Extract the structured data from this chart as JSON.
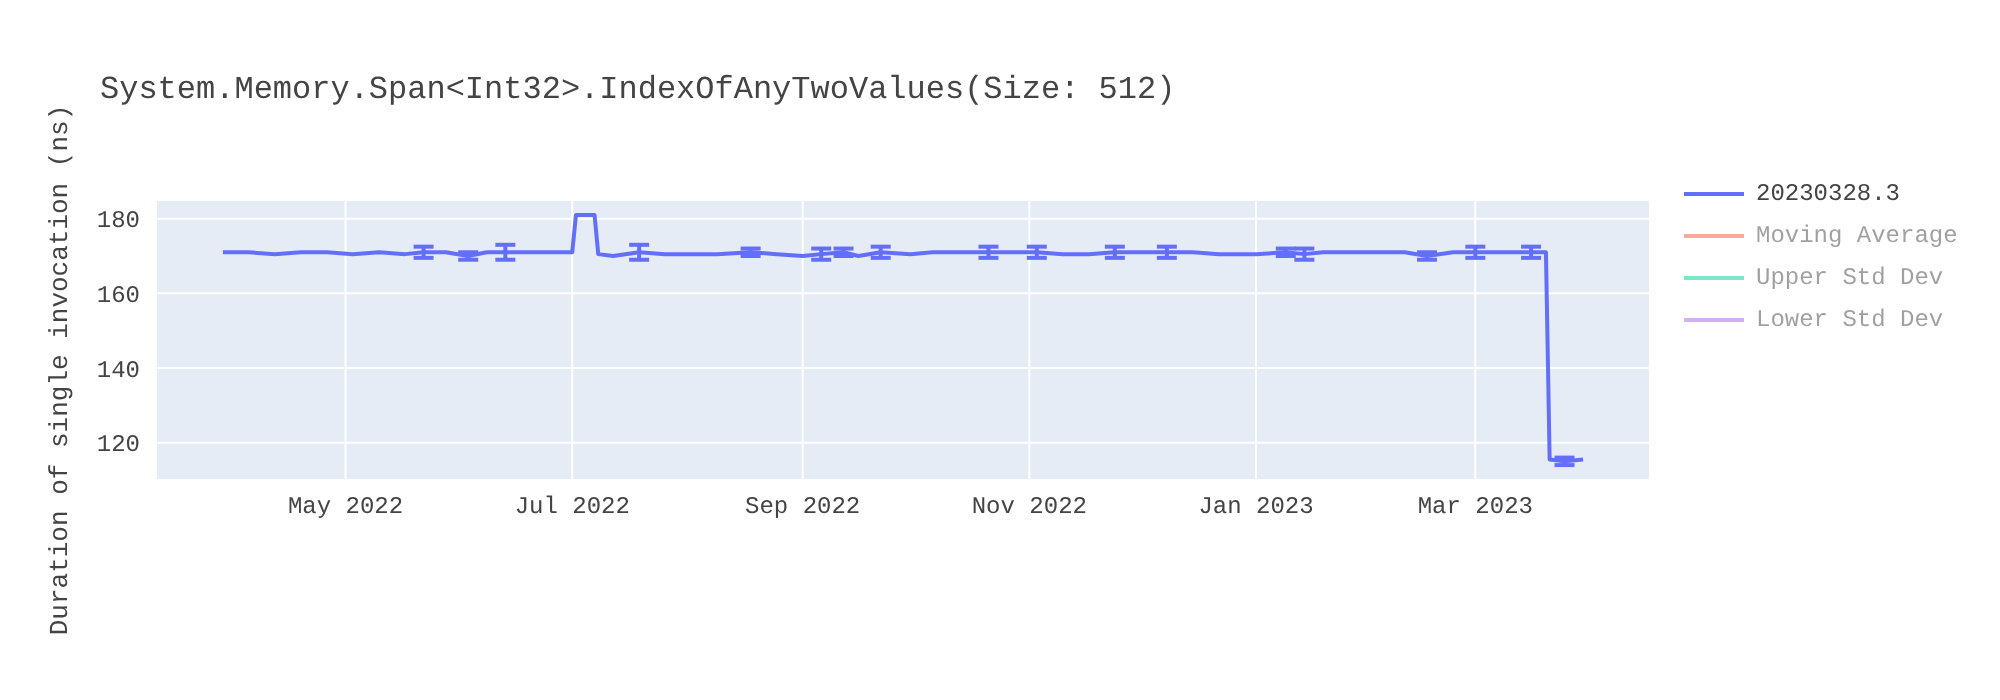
{
  "chart_data": {
    "type": "line",
    "title": "System.Memory.Span<Int32>.IndexOfAnyTwoValues(Size: 512)",
    "ylabel": "Duration of single invocation (ns)",
    "x": [
      "2022-03-29",
      "2022-04-05",
      "2022-04-12",
      "2022-04-19",
      "2022-04-26",
      "2022-05-03",
      "2022-05-10",
      "2022-05-17",
      "2022-05-22",
      "2022-05-28",
      "2022-06-03",
      "2022-06-08",
      "2022-06-13",
      "2022-06-20",
      "2022-06-27",
      "2022-07-01",
      "2022-07-02",
      "2022-07-05",
      "2022-07-07",
      "2022-07-08",
      "2022-07-12",
      "2022-07-19",
      "2022-07-26",
      "2022-08-02",
      "2022-08-09",
      "2022-08-18",
      "2022-08-25",
      "2022-09-01",
      "2022-09-06",
      "2022-09-12",
      "2022-09-16",
      "2022-09-22",
      "2022-09-30",
      "2022-10-06",
      "2022-10-14",
      "2022-10-21",
      "2022-10-26",
      "2022-11-03",
      "2022-11-10",
      "2022-11-17",
      "2022-11-24",
      "2022-12-01",
      "2022-12-08",
      "2022-12-15",
      "2022-12-22",
      "2023-01-01",
      "2023-01-09",
      "2023-01-14",
      "2023-01-19",
      "2023-01-26",
      "2023-02-03",
      "2023-02-10",
      "2023-02-16",
      "2023-02-23",
      "2023-03-01",
      "2023-03-05",
      "2023-03-12",
      "2023-03-16",
      "2023-03-20",
      "2023-03-21",
      "2023-03-25",
      "2023-03-30"
    ],
    "series": [
      {
        "name": "20230328.3",
        "color": "#636efa",
        "values": [
          171,
          171,
          170.5,
          171,
          171,
          170.5,
          171,
          170.5,
          171,
          171,
          170,
          171,
          171,
          171,
          171,
          171,
          181,
          181,
          181,
          170.5,
          170,
          171,
          170.5,
          170.5,
          170.5,
          171,
          170.5,
          170,
          170.5,
          171,
          170,
          171,
          170.5,
          171,
          171,
          171,
          171,
          171,
          170.5,
          170.5,
          171,
          171,
          171,
          171,
          170.5,
          170.5,
          171,
          170.5,
          171,
          171,
          171,
          171,
          170,
          171,
          171,
          171,
          171,
          171,
          171,
          115.5,
          115,
          115.5
        ],
        "errors": [
          null,
          null,
          null,
          null,
          null,
          null,
          null,
          null,
          1.5,
          null,
          1,
          null,
          2,
          null,
          null,
          null,
          null,
          null,
          null,
          null,
          null,
          2,
          null,
          null,
          null,
          1,
          null,
          null,
          1.5,
          1,
          null,
          1.5,
          null,
          null,
          null,
          1.5,
          null,
          1.5,
          null,
          null,
          1.5,
          null,
          1.5,
          null,
          null,
          null,
          1,
          1.5,
          null,
          null,
          null,
          null,
          1,
          null,
          1.5,
          null,
          null,
          1.5,
          null,
          null,
          1,
          null
        ]
      },
      {
        "name": "Moving Average",
        "color": "#ef553b",
        "values": [
          null,
          null,
          null,
          null,
          null,
          null,
          null,
          null,
          null,
          null,
          null,
          null,
          null,
          null,
          null,
          null,
          null,
          null,
          null,
          null,
          null,
          null,
          null,
          null,
          null,
          null,
          null,
          null,
          null,
          null,
          null,
          null,
          null,
          null,
          null,
          null,
          null,
          null,
          null,
          null,
          null,
          null,
          null,
          null,
          null,
          null,
          null,
          null,
          null,
          null,
          null,
          null,
          null,
          null,
          null,
          null,
          null,
          null,
          null,
          null,
          null,
          null
        ]
      },
      {
        "name": "Upper Std Dev",
        "color": "#00cc96",
        "values": [
          null,
          null,
          null,
          null,
          null,
          null,
          null,
          null,
          null,
          null,
          null,
          null,
          null,
          null,
          null,
          null,
          null,
          null,
          null,
          null,
          null,
          null,
          null,
          null,
          null,
          null,
          null,
          null,
          null,
          null,
          null,
          null,
          null,
          null,
          null,
          null,
          null,
          null,
          null,
          null,
          null,
          null,
          null,
          null,
          null,
          null,
          null,
          null,
          null,
          null,
          null,
          null,
          null,
          null,
          null,
          null,
          null,
          null,
          null,
          null,
          null,
          null
        ]
      },
      {
        "name": "Lower Std Dev",
        "color": "#ab63fa",
        "values": [
          null,
          null,
          null,
          null,
          null,
          null,
          null,
          null,
          null,
          null,
          null,
          null,
          null,
          null,
          null,
          null,
          null,
          null,
          null,
          null,
          null,
          null,
          null,
          null,
          null,
          null,
          null,
          null,
          null,
          null,
          null,
          null,
          null,
          null,
          null,
          null,
          null,
          null,
          null,
          null,
          null,
          null,
          null,
          null,
          null,
          null,
          null,
          null,
          null,
          null,
          null,
          null,
          null,
          null,
          null,
          null,
          null,
          null,
          null,
          null,
          null,
          null
        ]
      }
    ],
    "xlim": [
      "2022-03-11",
      "2023-04-17"
    ],
    "xticks": [
      {
        "value": "2022-05-01",
        "label": "May 2022"
      },
      {
        "value": "2022-07-01",
        "label": "Jul 2022"
      },
      {
        "value": "2022-09-01",
        "label": "Sep 2022"
      },
      {
        "value": "2022-11-01",
        "label": "Nov 2022"
      },
      {
        "value": "2023-01-01",
        "label": "Jan 2023"
      },
      {
        "value": "2023-03-01",
        "label": "Mar 2023"
      }
    ],
    "ylim": [
      110,
      185
    ],
    "yticks": [
      120,
      140,
      160,
      180
    ],
    "grid": true,
    "legend": "top right",
    "marker": "none",
    "line_style": "solid"
  }
}
